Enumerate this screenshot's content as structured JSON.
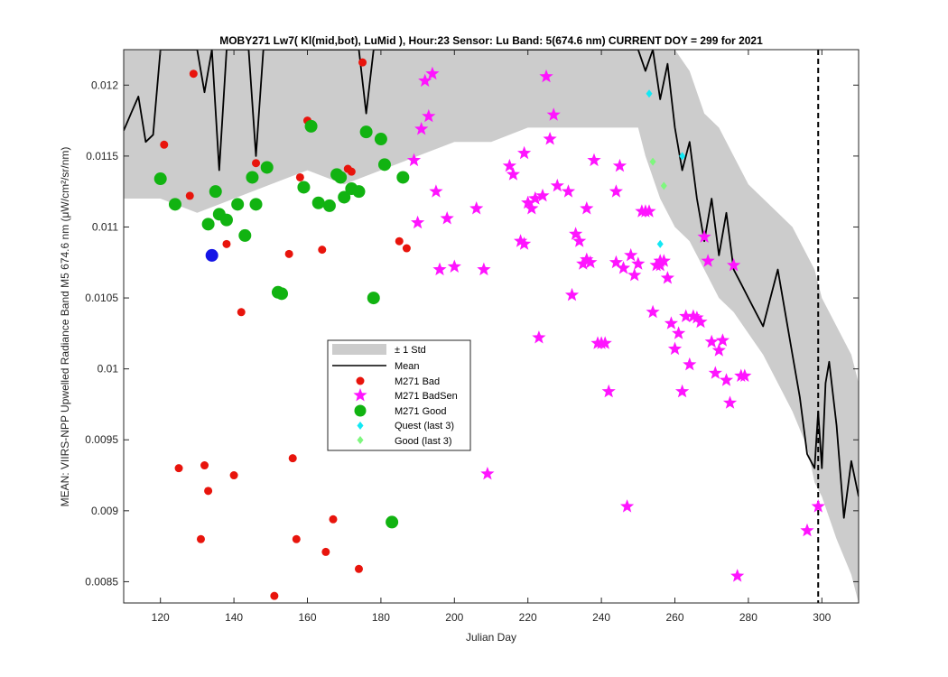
{
  "chart_data": {
    "type": "scatter",
    "title": "MOBY271   Lw7( Kl(mid,bot), LuMid ),   Hour:23 Sensor: Lu Band: 5(674.6 nm)   CURRENT DOY = 299 for 2021",
    "xlabel": "Julian Day",
    "ylabel": "MEAN: VIIRS-NPP Upwelled Radiance Band M5 674.6 nm (μW/cm²/sr/nm)",
    "xlim": [
      110,
      310
    ],
    "ylim": [
      0.00835,
      0.01225
    ],
    "x_ticks": [
      120,
      140,
      160,
      180,
      200,
      220,
      240,
      260,
      280,
      300
    ],
    "x_tick_labels": [
      "120",
      "140",
      "160",
      "180",
      "200",
      "220",
      "240",
      "260",
      "280",
      "300"
    ],
    "y_ticks": [
      0.0085,
      0.009,
      0.0095,
      0.01,
      0.0105,
      0.011,
      0.0115,
      0.012
    ],
    "y_tick_labels": [
      "0.0085",
      "0.009",
      "0.0095",
      "0.01",
      "0.0105",
      "0.011",
      "0.0115",
      "0.012"
    ],
    "current_doy": 299,
    "grid": false,
    "legend_placement": "center-left",
    "legend": [
      {
        "label": "± 1 Std",
        "kind": "patch",
        "color": "#cccccc"
      },
      {
        "label": "Mean",
        "kind": "line",
        "color": "#000000"
      },
      {
        "label": "M271 Bad",
        "kind": "dot",
        "color": "#e8140c"
      },
      {
        "label": "M271 BadSen",
        "kind": "star",
        "color": "#ff14ff"
      },
      {
        "label": "M271 Good",
        "kind": "bigdot",
        "color": "#11b311"
      },
      {
        "label": "Quest (last 3)",
        "kind": "diamond",
        "color": "#12e8f4"
      },
      {
        "label": "Good (last 3)",
        "kind": "diamond",
        "color": "#7ef77e"
      }
    ],
    "colors": {
      "std": "#cccccc",
      "mean": "#000000",
      "bad": "#e8140c",
      "badsen": "#ff14ff",
      "good": "#11b311",
      "blue": "#1414e6",
      "quest": "#12e8f4",
      "good_last3": "#7ef77e"
    },
    "series": [
      {
        "name": "Mean",
        "x": [
          110,
          112,
          114,
          116,
          118,
          120,
          122,
          124,
          126,
          128,
          130,
          132,
          134,
          136,
          138,
          140,
          142,
          144,
          146,
          148,
          150,
          152,
          154,
          156,
          158,
          160,
          162,
          164,
          166,
          168,
          170,
          172,
          174,
          176,
          178,
          180,
          182,
          184,
          186,
          188,
          190,
          192,
          194,
          196,
          198,
          200,
          202,
          204,
          206,
          208,
          210,
          212,
          214,
          216,
          218,
          220,
          222,
          224,
          226,
          228,
          230,
          232,
          234,
          236,
          238,
          240,
          242,
          244,
          246,
          248,
          250,
          252,
          254,
          256,
          258,
          260,
          262,
          264,
          266,
          268,
          270,
          272,
          274,
          276,
          278,
          280,
          282,
          284,
          286,
          288,
          290,
          292,
          294,
          296,
          298,
          299,
          300,
          301,
          302,
          304,
          306,
          308,
          310
        ],
        "values": [
          0.01168,
          0.0118,
          0.01192,
          0.0116,
          0.01165,
          0.01225,
          0.01225,
          0.01225,
          0.01225,
          0.01225,
          0.01225,
          0.01195,
          0.01225,
          0.0114,
          0.01225,
          0.01225,
          0.01225,
          0.01225,
          0.0115,
          0.01225,
          0.01225,
          0.01225,
          0.01225,
          0.01225,
          0.01225,
          0.01225,
          0.01225,
          0.01225,
          0.01225,
          0.01225,
          0.01225,
          0.01225,
          0.01225,
          0.0118,
          0.01225,
          0.01225,
          0.01225,
          0.01225,
          0.01225,
          0.01225,
          0.01225,
          0.01225,
          0.01225,
          0.01225,
          0.01225,
          0.01225,
          0.01225,
          0.01225,
          0.01225,
          0.01225,
          0.01225,
          0.01225,
          0.01225,
          0.01225,
          0.01225,
          0.01225,
          0.01225,
          0.01225,
          0.01225,
          0.01225,
          0.01225,
          0.01225,
          0.01225,
          0.01225,
          0.01225,
          0.01225,
          0.01225,
          0.01225,
          0.01225,
          0.01225,
          0.01225,
          0.0121,
          0.01225,
          0.0119,
          0.01215,
          0.0117,
          0.0114,
          0.0116,
          0.0112,
          0.0109,
          0.0112,
          0.0108,
          0.0111,
          0.0107,
          0.0106,
          0.0105,
          0.0104,
          0.0103,
          0.0105,
          0.0107,
          0.0104,
          0.0101,
          0.0098,
          0.0094,
          0.0093,
          0.0097,
          0.0093,
          0.0099,
          0.01005,
          0.0096,
          0.00895,
          0.00935,
          0.0091
        ]
      },
      {
        "name": "± 1 Std",
        "x": [
          110,
          120,
          130,
          140,
          150,
          160,
          170,
          180,
          190,
          200,
          210,
          220,
          230,
          240,
          250,
          252,
          256,
          260,
          264,
          268,
          272,
          276,
          280,
          284,
          288,
          292,
          296,
          298,
          300,
          304,
          308,
          310
        ],
        "values_low": [
          0.0112,
          0.0112,
          0.0111,
          0.0112,
          0.0113,
          0.0114,
          0.0113,
          0.0114,
          0.0115,
          0.0116,
          0.0116,
          0.0117,
          0.0117,
          0.0117,
          0.0117,
          0.0115,
          0.0112,
          0.011,
          0.0109,
          0.0107,
          0.0105,
          0.0104,
          0.01025,
          0.0101,
          0.0099,
          0.0097,
          0.00945,
          0.0092,
          0.0091,
          0.0088,
          0.00855,
          0.00835
        ],
        "values_high": [
          0.01225,
          0.01225,
          0.01225,
          0.01225,
          0.01225,
          0.01225,
          0.01225,
          0.01225,
          0.01225,
          0.01225,
          0.01225,
          0.01225,
          0.01225,
          0.01225,
          0.01225,
          0.01225,
          0.01225,
          0.01225,
          0.0121,
          0.0118,
          0.0117,
          0.0115,
          0.0113,
          0.0112,
          0.0111,
          0.011,
          0.0108,
          0.0107,
          0.0105,
          0.0103,
          0.0101,
          0.0099
        ]
      },
      {
        "name": "M271 Bad",
        "x": [
          121,
          125,
          128,
          129,
          131,
          132,
          133,
          138,
          140,
          142,
          146,
          151,
          155,
          156,
          157,
          158,
          160,
          164,
          165,
          167,
          171,
          172,
          174,
          175,
          185,
          187
        ],
        "values": [
          0.01158,
          0.0093,
          0.01122,
          0.01208,
          0.0088,
          0.00932,
          0.00914,
          0.01088,
          0.00925,
          0.0104,
          0.01145,
          0.0084,
          0.01081,
          0.00937,
          0.0088,
          0.01135,
          0.01175,
          0.01084,
          0.00871,
          0.00894,
          0.01141,
          0.01139,
          0.00859,
          0.01216,
          0.0109,
          0.01085
        ]
      },
      {
        "name": "M271 BadSen",
        "x": [
          189,
          190,
          191,
          192,
          193,
          194,
          195,
          196,
          198,
          200,
          206,
          208,
          209,
          216,
          215,
          219,
          218,
          221,
          219,
          222,
          220,
          222,
          223,
          224,
          225,
          226,
          227,
          228,
          231,
          232,
          233,
          234,
          235,
          236,
          236,
          237,
          238,
          239,
          240,
          241,
          242,
          244,
          245,
          244,
          246,
          247,
          248,
          249,
          250,
          251,
          252,
          253,
          254,
          255,
          256,
          256,
          257,
          258,
          259,
          260,
          261,
          262,
          263,
          264,
          265,
          266,
          267,
          268,
          269,
          270,
          271,
          272,
          273,
          274,
          275,
          276,
          277,
          278,
          279,
          296,
          299
        ],
        "values": [
          0.01147,
          0.01103,
          0.01169,
          0.01203,
          0.01178,
          0.01208,
          0.01125,
          0.0107,
          0.01106,
          0.01072,
          0.01113,
          0.0107,
          0.00926,
          0.01137,
          0.01143,
          0.01088,
          0.0109,
          0.01113,
          0.01152,
          0.0112,
          0.01117,
          0.0112,
          0.01022,
          0.01122,
          0.01206,
          0.01162,
          0.01179,
          0.01129,
          0.01125,
          0.01052,
          0.01095,
          0.0109,
          0.01074,
          0.01113,
          0.01077,
          0.01075,
          0.01147,
          0.01018,
          0.01018,
          0.01018,
          0.00984,
          0.01125,
          0.01143,
          0.01075,
          0.01071,
          0.00903,
          0.0108,
          0.01066,
          0.01074,
          0.01111,
          0.01111,
          0.01111,
          0.0104,
          0.01073,
          0.01073,
          0.01076,
          0.01076,
          0.01064,
          0.01032,
          0.01014,
          0.01025,
          0.00984,
          0.01037,
          0.01003,
          0.01037,
          0.01036,
          0.01033,
          0.01093,
          0.01076,
          0.01019,
          0.00997,
          0.01013,
          0.0102,
          0.00992,
          0.00976,
          0.01073,
          0.00854,
          0.00995,
          0.00995,
          0.00886,
          0.00903
        ]
      },
      {
        "name": "M271 Good",
        "x": [
          120,
          124,
          133,
          135,
          136,
          138,
          141,
          143,
          145,
          146,
          149,
          152,
          153,
          159,
          161,
          163,
          166,
          168,
          169,
          170,
          172,
          174,
          176,
          178,
          180,
          181,
          186,
          183
        ],
        "values": [
          0.01134,
          0.01116,
          0.01102,
          0.01125,
          0.01109,
          0.01105,
          0.01116,
          0.01094,
          0.01135,
          0.01116,
          0.01142,
          0.01054,
          0.01053,
          0.01128,
          0.01171,
          0.01117,
          0.01115,
          0.01137,
          0.01135,
          0.01121,
          0.01127,
          0.01125,
          0.01167,
          0.0105,
          0.01162,
          0.01144,
          0.01135,
          0.00892
        ]
      },
      {
        "name": "",
        "x": [
          134
        ],
        "values": [
          0.0108
        ]
      },
      {
        "name": "Quest (last 3)",
        "x": [
          253,
          256,
          262
        ],
        "values": [
          0.01194,
          0.01088,
          0.0115
        ]
      },
      {
        "name": "Good (last 3)",
        "x": [
          254,
          257
        ],
        "values": [
          0.01146,
          0.01129
        ]
      }
    ]
  }
}
